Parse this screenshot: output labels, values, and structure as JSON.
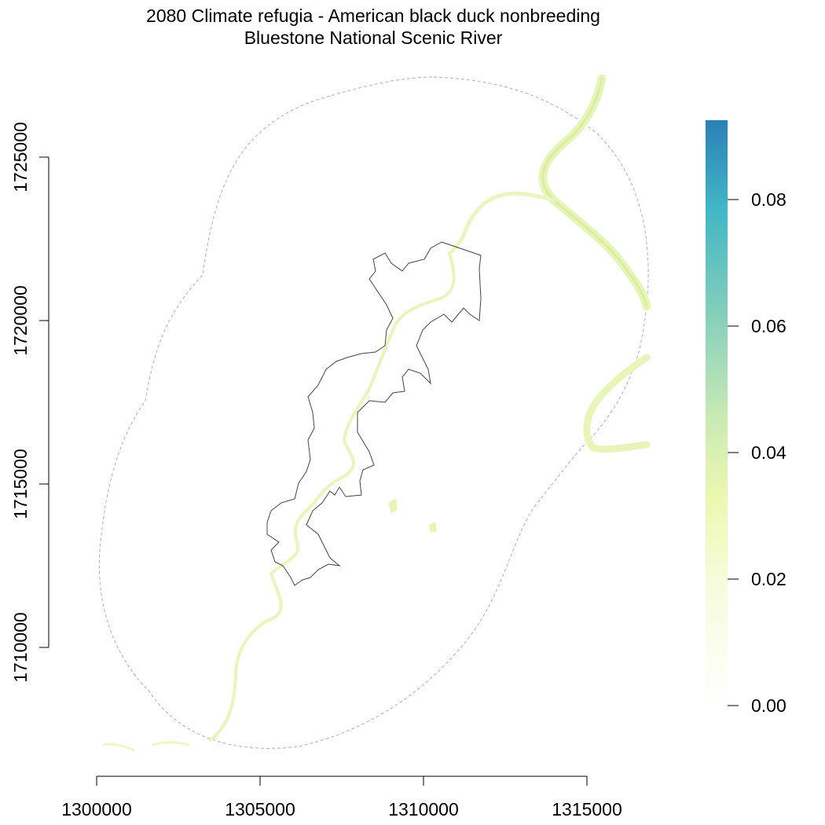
{
  "title": {
    "line1": "2080 Climate refugia - American black duck nonbreeding",
    "line2": "Bluestone National Scenic River"
  },
  "x_axis": {
    "ticks": [
      {
        "value": 1300000,
        "label": "1300000"
      },
      {
        "value": 1305000,
        "label": "1305000"
      },
      {
        "value": 1310000,
        "label": "1310000"
      },
      {
        "value": 1315000,
        "label": "1315000"
      }
    ]
  },
  "y_axis": {
    "ticks": [
      {
        "value": 1710000,
        "label": "1710000"
      },
      {
        "value": 1715000,
        "label": "1715000"
      },
      {
        "value": 1720000,
        "label": "1720000"
      },
      {
        "value": 1725000,
        "label": "1725000"
      }
    ]
  },
  "legend": {
    "ticks": [
      {
        "value": 0.0,
        "label": "0.00"
      },
      {
        "value": 0.02,
        "label": "0.02"
      },
      {
        "value": 0.04,
        "label": "0.04"
      },
      {
        "value": 0.06,
        "label": "0.06"
      },
      {
        "value": 0.08,
        "label": "0.08"
      }
    ],
    "range": [
      0,
      0.092
    ],
    "colors": [
      "#ffffff",
      "#edf8b1",
      "#c7e9b4",
      "#7fcdbb",
      "#41b6c4",
      "#2c7fb8"
    ]
  },
  "layers": {
    "park_boundary_color": "#444444",
    "buffer_color": "#b0b0b0",
    "river_color": "#e6f5b5"
  }
}
